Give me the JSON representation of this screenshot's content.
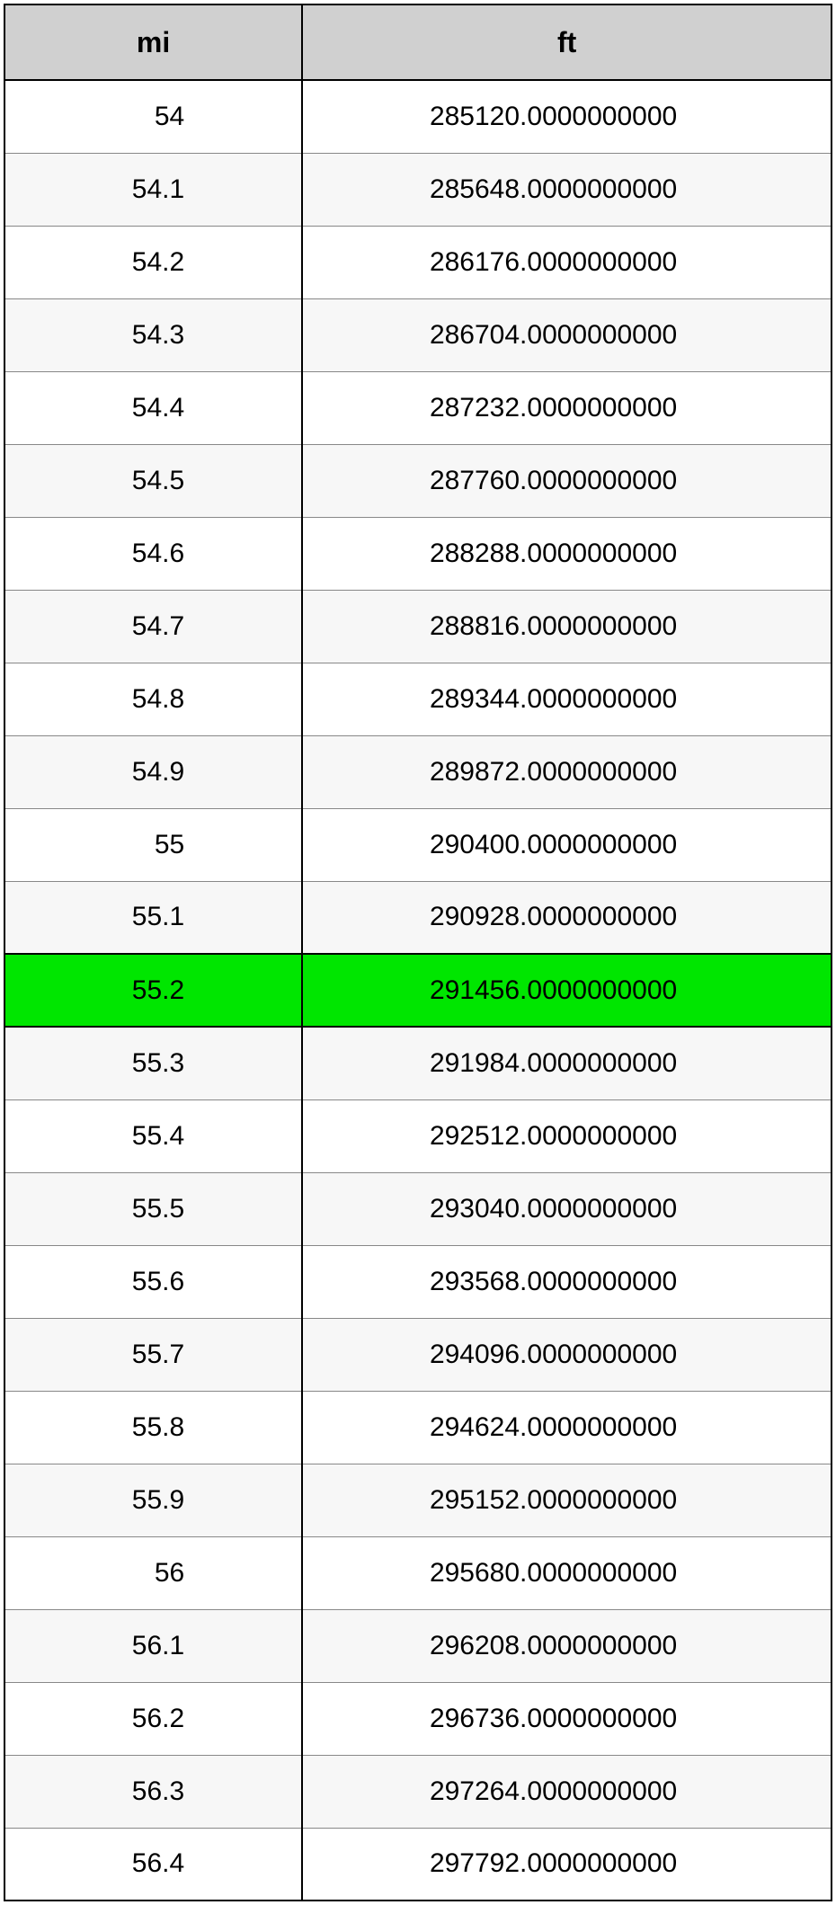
{
  "table": {
    "columns": [
      "mi",
      "ft"
    ],
    "highlight_row_index": 12,
    "header_bg": "#d0d0d0",
    "highlight_bg": "#00e600",
    "row_bg_even": "#ffffff",
    "row_bg_odd": "#f7f7f7",
    "border_color": "#000000",
    "cell_border_color": "#888888",
    "header_fontsize": 32,
    "cell_fontsize": 30,
    "rows": [
      [
        "54",
        "285120.0000000000"
      ],
      [
        "54.1",
        "285648.0000000000"
      ],
      [
        "54.2",
        "286176.0000000000"
      ],
      [
        "54.3",
        "286704.0000000000"
      ],
      [
        "54.4",
        "287232.0000000000"
      ],
      [
        "54.5",
        "287760.0000000000"
      ],
      [
        "54.6",
        "288288.0000000000"
      ],
      [
        "54.7",
        "288816.0000000000"
      ],
      [
        "54.8",
        "289344.0000000000"
      ],
      [
        "54.9",
        "289872.0000000000"
      ],
      [
        "55",
        "290400.0000000000"
      ],
      [
        "55.1",
        "290928.0000000000"
      ],
      [
        "55.2",
        "291456.0000000000"
      ],
      [
        "55.3",
        "291984.0000000000"
      ],
      [
        "55.4",
        "292512.0000000000"
      ],
      [
        "55.5",
        "293040.0000000000"
      ],
      [
        "55.6",
        "293568.0000000000"
      ],
      [
        "55.7",
        "294096.0000000000"
      ],
      [
        "55.8",
        "294624.0000000000"
      ],
      [
        "55.9",
        "295152.0000000000"
      ],
      [
        "56",
        "295680.0000000000"
      ],
      [
        "56.1",
        "296208.0000000000"
      ],
      [
        "56.2",
        "296736.0000000000"
      ],
      [
        "56.3",
        "297264.0000000000"
      ],
      [
        "56.4",
        "297792.0000000000"
      ]
    ]
  }
}
